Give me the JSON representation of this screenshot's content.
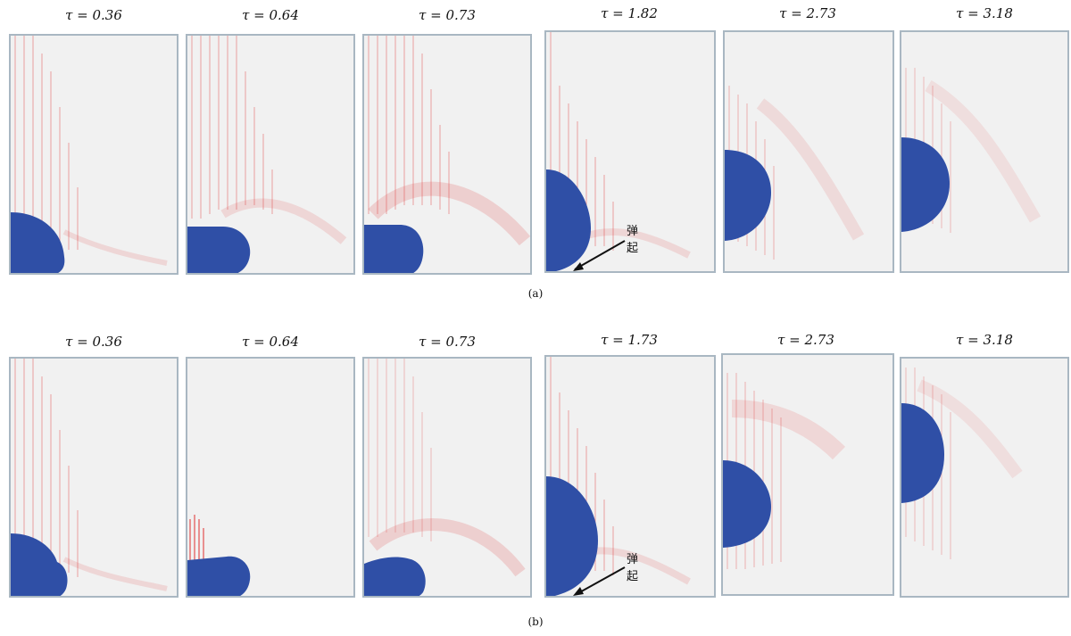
{
  "figure": {
    "rows": [
      {
        "id": "a",
        "label": "(a)",
        "annotation": "弹起",
        "frames": [
          {
            "tau_label": "τ = 0.36"
          },
          {
            "tau_label": "τ = 0.64"
          },
          {
            "tau_label": "τ = 0.73"
          },
          {
            "tau_label": "τ = 1.82"
          },
          {
            "tau_label": "τ = 2.73"
          },
          {
            "tau_label": "τ = 3.18"
          }
        ]
      },
      {
        "id": "b",
        "label": "(b)",
        "annotation": "弹起",
        "frames": [
          {
            "tau_label": "τ = 0.36"
          },
          {
            "tau_label": "τ = 0.64"
          },
          {
            "tau_label": "τ = 0.73"
          },
          {
            "tau_label": "τ = 1.73"
          },
          {
            "tau_label": "τ = 2.73"
          },
          {
            "tau_label": "τ = 3.18"
          }
        ]
      }
    ],
    "colors": {
      "droplet": "#2f4fa6",
      "vectors": "#e03a3a",
      "panel_bg": "#f1f1f1",
      "panel_border": "#a9b7c2"
    }
  }
}
